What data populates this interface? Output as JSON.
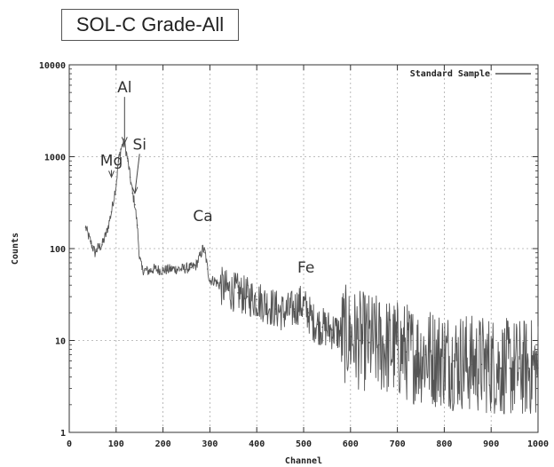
{
  "title": "SOL-C Grade-All",
  "chart_data": {
    "type": "line",
    "title": "SOL-C Grade-All",
    "xlabel": "Channel",
    "ylabel": "Counts",
    "xlim": [
      0,
      1000
    ],
    "ylim": [
      1,
      10000
    ],
    "yscale": "log",
    "grid": true,
    "legend_position": "top-right",
    "x_ticks": [
      0,
      100,
      200,
      300,
      400,
      500,
      600,
      700,
      800,
      900,
      1000
    ],
    "y_ticks": [
      1,
      10,
      100,
      1000,
      10000
    ],
    "series": [
      {
        "name": "Standard Sample",
        "color": "#555555",
        "x": [
          35,
          45,
          55,
          60,
          70,
          80,
          90,
          100,
          105,
          110,
          115,
          118,
          122,
          125,
          130,
          135,
          140,
          145,
          150,
          155,
          160,
          170,
          180,
          200,
          220,
          240,
          260,
          270,
          280,
          285,
          290,
          295,
          300,
          310,
          320,
          340,
          360,
          380,
          400,
          420,
          440,
          460,
          480,
          490,
          500,
          510,
          520,
          530,
          540,
          560,
          580,
          600,
          620,
          640,
          660,
          680,
          700,
          720,
          740,
          760,
          780,
          800,
          820,
          840,
          860,
          880,
          900,
          920,
          940,
          960,
          980,
          1000
        ],
        "y": [
          170,
          120,
          90,
          100,
          110,
          150,
          250,
          500,
          900,
          1200,
          1400,
          1350,
          1100,
          900,
          600,
          400,
          300,
          180,
          80,
          60,
          58,
          57,
          60,
          58,
          60,
          60,
          62,
          65,
          85,
          100,
          90,
          60,
          45,
          45,
          40,
          35,
          33,
          30,
          28,
          25,
          22,
          20,
          22,
          25,
          24,
          20,
          16,
          15,
          14,
          13,
          12,
          11,
          10,
          9.5,
          9,
          8.5,
          8,
          7.5,
          7,
          7,
          6.5,
          6.5,
          6,
          6,
          5.5,
          5.5,
          5.5,
          5,
          5,
          5,
          5,
          5
        ]
      }
    ],
    "annotations": [
      {
        "text": "Mg",
        "x": 90,
        "y": 800,
        "arrow_to": {
          "x": 90,
          "y": 600
        }
      },
      {
        "text": "Al",
        "x": 118,
        "y": 5000,
        "arrow_to": {
          "x": 118,
          "y": 1400
        }
      },
      {
        "text": "Si",
        "x": 150,
        "y": 1200,
        "arrow_to": {
          "x": 140,
          "y": 400
        }
      },
      {
        "text": "Ca",
        "x": 285,
        "y": 200
      },
      {
        "text": "Fe",
        "x": 505,
        "y": 55
      }
    ]
  }
}
